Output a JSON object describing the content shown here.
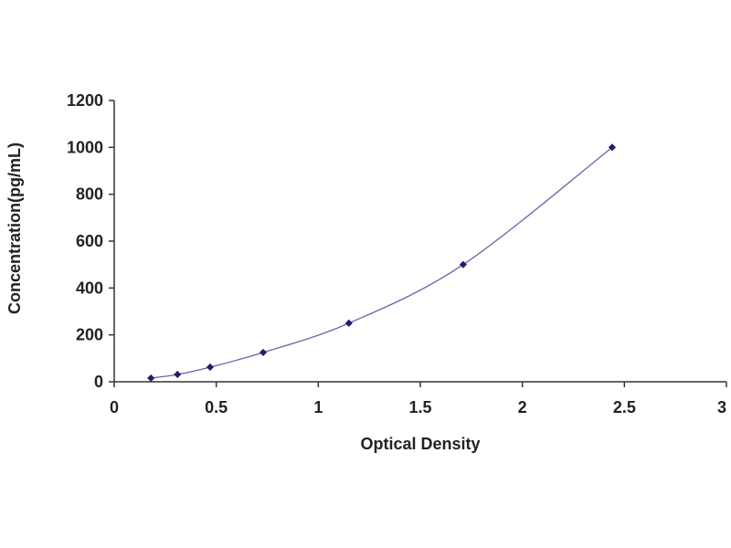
{
  "chart_data": {
    "type": "scatter",
    "title": "",
    "xlabel": "Optical Density",
    "ylabel": "Concentration(pg/mL)",
    "xlim": [
      0,
      3
    ],
    "ylim": [
      0,
      1200
    ],
    "xticks": [
      0,
      0.5,
      1,
      1.5,
      2,
      2.5,
      3
    ],
    "xtick_labels": [
      "0",
      "0.5",
      "1",
      "1.5",
      "2",
      "2.5",
      "3"
    ],
    "yticks": [
      0,
      200,
      400,
      600,
      800,
      1000,
      1200
    ],
    "ytick_labels": [
      "0",
      "200",
      "400",
      "600",
      "800",
      "1000",
      "1200"
    ],
    "grid": false,
    "legend": "none",
    "series": [
      {
        "points": [
          {
            "x": 0.18,
            "y": 15.6
          },
          {
            "x": 0.31,
            "y": 31.2
          },
          {
            "x": 0.47,
            "y": 62.5
          },
          {
            "x": 0.73,
            "y": 125
          },
          {
            "x": 1.15,
            "y": 250
          },
          {
            "x": 1.71,
            "y": 500
          },
          {
            "x": 2.44,
            "y": 1000
          }
        ],
        "trendline": "smooth curve",
        "marker_color": "#1f1f6b",
        "line_color": "#6666aa"
      }
    ]
  }
}
